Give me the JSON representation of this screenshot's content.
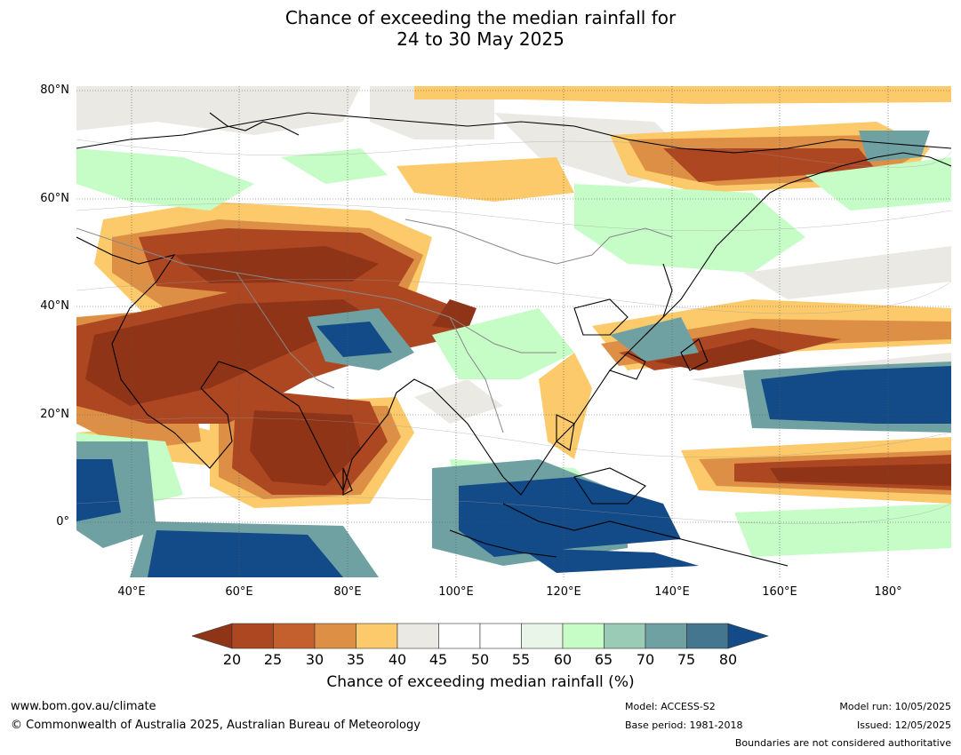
{
  "title_line1": "Chance of exceeding the median rainfall for",
  "title_line2": "24 to 30 May 2025",
  "map": {
    "lat_labels": [
      "80°N",
      "60°N",
      "40°N",
      "20°N",
      "0°"
    ],
    "lon_labels": [
      "40°E",
      "60°E",
      "80°E",
      "100°E",
      "120°E",
      "140°E",
      "160°E",
      "180°"
    ]
  },
  "colorbar": {
    "title": "Chance of exceeding median rainfall (%)",
    "ticks": [
      "20",
      "25",
      "30",
      "35",
      "40",
      "45",
      "50",
      "55",
      "60",
      "65",
      "70",
      "75",
      "80"
    ],
    "colors": {
      "below_20": "#8f3417",
      "c20_25": "#ad4722",
      "c25_30": "#c4602e",
      "c30_35": "#dd9045",
      "c35_40": "#fcca6a",
      "c40_45": "#ebe9e4",
      "c45_50": "#ffffff",
      "c50_55": "#ffffff",
      "c55_60": "#eaf5e9",
      "c60_65": "#c6fdc7",
      "c65_70": "#9acbb6",
      "c70_75": "#6fa1a3",
      "c75_80": "#44768f",
      "above_80": "#124b88"
    }
  },
  "footer": {
    "website": "www.bom.gov.au/climate",
    "copyright": "© Commonwealth of Australia 2025, Australian Bureau of Meteorology",
    "model": "Model: ACCESS-S2",
    "base_period": "Base period: 1981-2018",
    "model_run": "Model run: 10/05/2025",
    "issued": "Issued: 12/05/2025",
    "disclaimer": "Boundaries are not considered authoritative"
  }
}
